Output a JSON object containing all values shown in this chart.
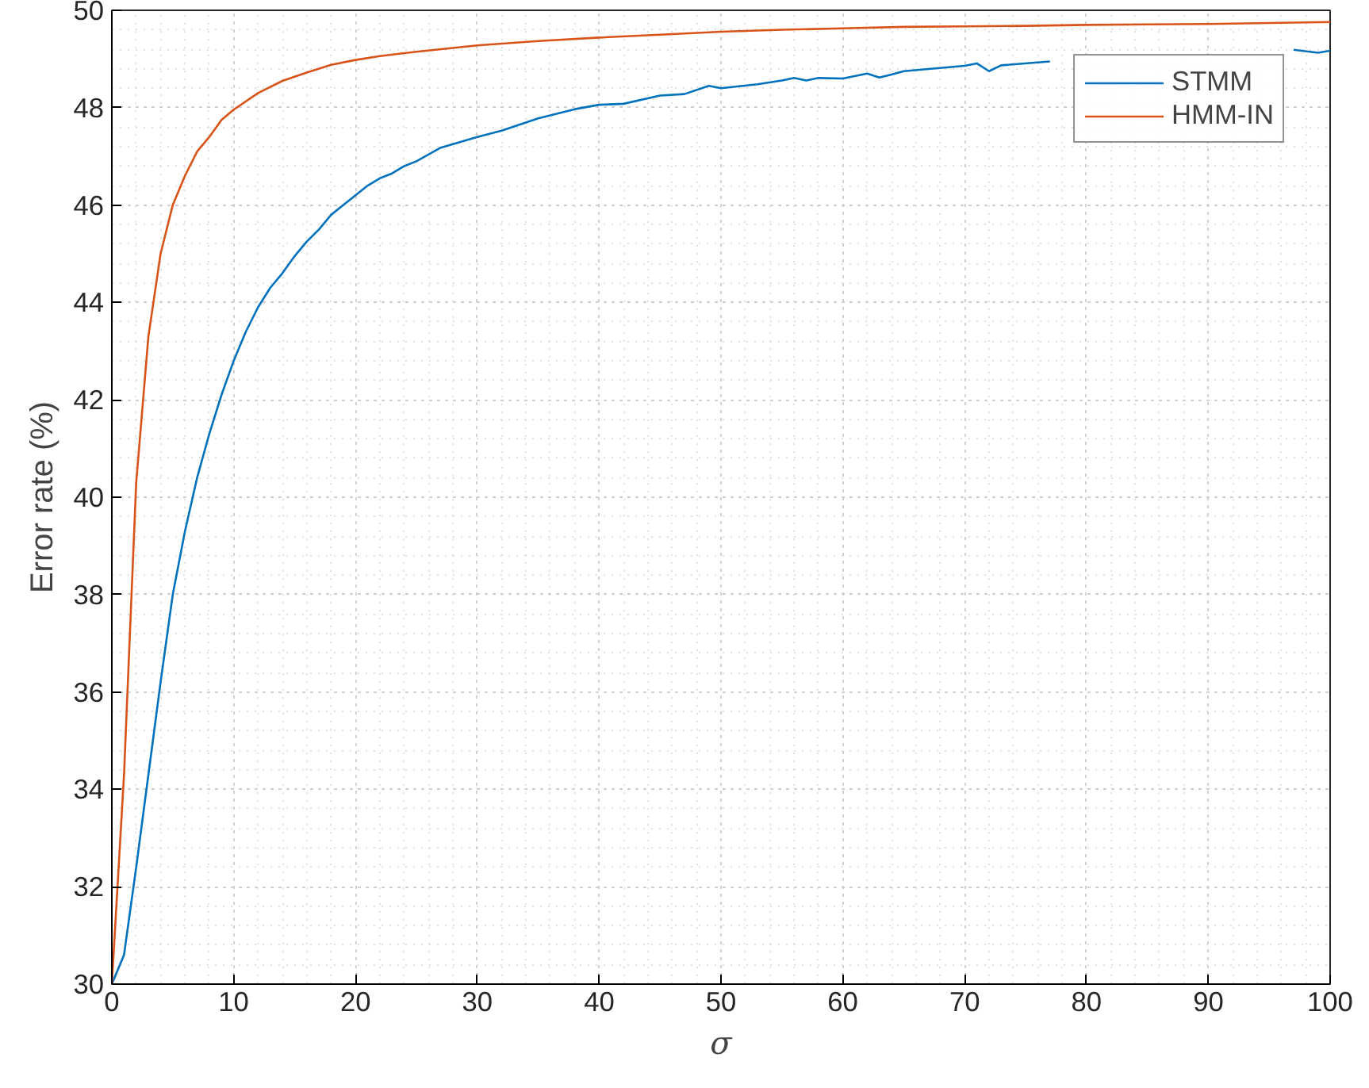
{
  "chart_data": {
    "type": "line",
    "xlabel": "σ",
    "ylabel": "Error rate (%)",
    "xlim": [
      0,
      100
    ],
    "xticks": [
      0,
      10,
      20,
      30,
      40,
      50,
      60,
      70,
      80,
      90,
      100
    ],
    "ylim": [
      30,
      50
    ],
    "yticks": [
      30,
      32,
      34,
      36,
      38,
      40,
      42,
      44,
      46,
      48,
      50
    ],
    "grid": true,
    "legend": "top right",
    "line_style": "solid",
    "marker": "none",
    "series": [
      {
        "name": "STMM",
        "color": "#0072bd",
        "x": [
          0,
          1,
          2,
          3,
          4,
          5,
          6,
          7,
          8,
          9,
          10,
          11,
          12,
          13,
          14,
          15,
          16,
          17,
          18,
          19,
          20,
          21,
          22,
          23,
          24,
          25,
          27,
          30,
          32,
          35,
          38,
          40,
          42,
          45,
          47,
          49,
          50,
          53,
          55,
          56,
          57,
          58,
          60,
          62,
          63,
          64,
          65,
          70,
          71,
          72,
          73,
          77,
          80,
          85,
          90,
          95,
          97,
          99,
          100
        ],
        "values": [
          30,
          30.6,
          32.4,
          34.3,
          36.2,
          38.0,
          39.3,
          40.4,
          41.3,
          42.1,
          42.8,
          43.4,
          43.9,
          44.3,
          44.6,
          44.95,
          45.25,
          45.5,
          45.8,
          46.0,
          46.2,
          46.4,
          46.55,
          46.65,
          46.8,
          46.9,
          47.18,
          47.4,
          47.53,
          47.78,
          47.97,
          48.06,
          48.08,
          48.25,
          48.28,
          48.45,
          48.4,
          48.48,
          48.56,
          48.61,
          48.56,
          48.61,
          48.6,
          48.7,
          48.62,
          48.68,
          48.75,
          48.86,
          48.91,
          48.75,
          48.87,
          48.95,
          null,
          null,
          null,
          null,
          49.19,
          49.13,
          49.17
        ]
      },
      {
        "name": "HMM-IN",
        "color": "#d95319",
        "x": [
          0,
          1,
          2,
          3,
          4,
          5,
          6,
          7,
          8,
          9,
          10,
          12,
          14,
          16,
          18,
          20,
          22,
          25,
          30,
          35,
          40,
          45,
          50,
          55,
          60,
          65,
          70,
          75,
          80,
          85,
          90,
          95,
          100
        ],
        "values": [
          30,
          34.3,
          40.3,
          43.3,
          45.0,
          46.0,
          46.6,
          47.1,
          47.4,
          47.75,
          47.96,
          48.3,
          48.55,
          48.72,
          48.88,
          48.98,
          49.06,
          49.15,
          49.28,
          49.37,
          49.44,
          49.5,
          49.56,
          49.6,
          49.63,
          49.66,
          49.67,
          49.68,
          49.7,
          49.71,
          49.72,
          49.74,
          49.76
        ]
      }
    ]
  }
}
